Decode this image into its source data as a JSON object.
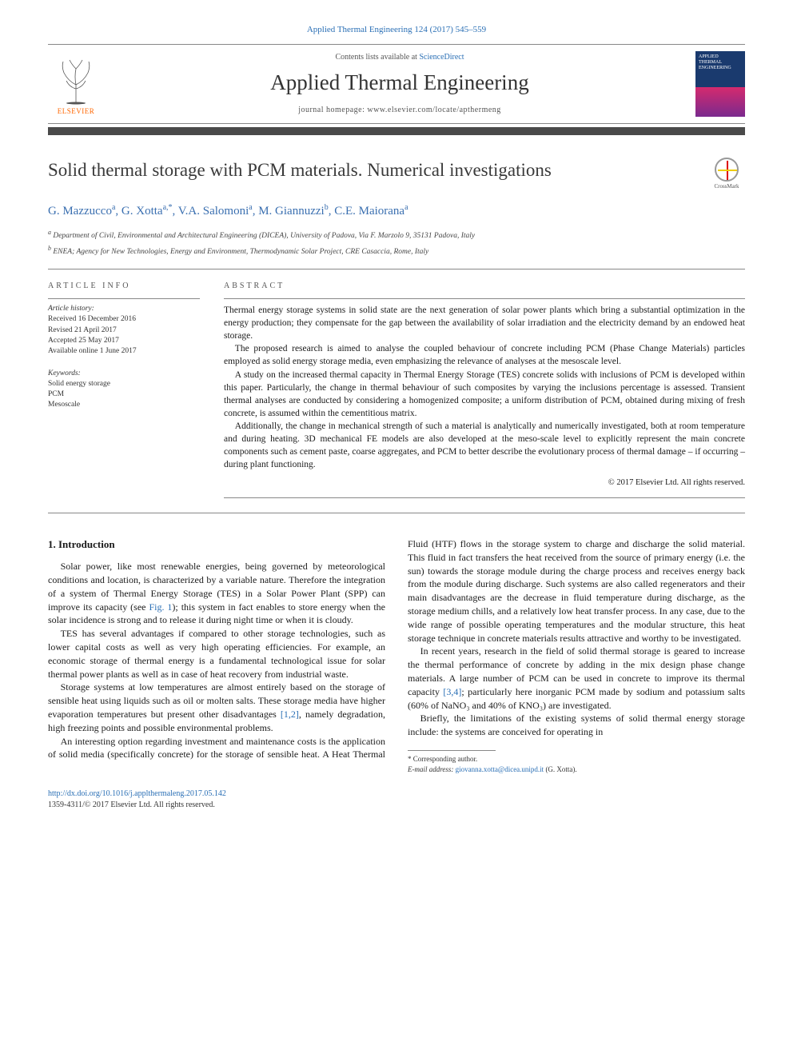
{
  "journal_ref": "Applied Thermal Engineering 124 (2017) 545–559",
  "header": {
    "contents_prefix": "Contents lists available at ",
    "contents_link": "ScienceDirect",
    "journal_name": "Applied Thermal Engineering",
    "homepage_prefix": "journal homepage: ",
    "homepage_url": "www.elsevier.com/locate/apthermeng",
    "publisher": "ELSEVIER",
    "cover_title": "APPLIED THERMAL ENGINEERING"
  },
  "crossmark_label": "CrossMark",
  "article": {
    "title": "Solid thermal storage with PCM materials. Numerical investigations",
    "authors_html": "G. Mazzucco<sup>a</sup>, G. Xotta<sup>a,*</sup>, V.A. Salomoni<sup>a</sup>, M. Giannuzzi<sup>b</sup>, C.E. Maiorana<sup>a</sup>",
    "affiliations": [
      "Department of Civil, Environmental and Architectural Engineering (DICEA), University of Padova, Via F. Marzolo 9, 35131 Padova, Italy",
      "ENEA; Agency for New Technologies, Energy and Environment, Thermodynamic Solar Project, CRE Casaccia, Rome, Italy"
    ],
    "affil_markers": [
      "a",
      "b"
    ]
  },
  "info": {
    "heading": "article info",
    "history_label": "Article history:",
    "history": [
      "Received 16 December 2016",
      "Revised 21 April 2017",
      "Accepted 25 May 2017",
      "Available online 1 June 2017"
    ],
    "keywords_label": "Keywords:",
    "keywords": [
      "Solid energy storage",
      "PCM",
      "Mesoscale"
    ]
  },
  "abstract": {
    "heading": "abstract",
    "paragraphs": [
      "Thermal energy storage systems in solid state are the next generation of solar power plants which bring a substantial optimization in the energy production; they compensate for the gap between the availability of solar irradiation and the electricity demand by an endowed heat storage.",
      "The proposed research is aimed to analyse the coupled behaviour of concrete including PCM (Phase Change Materials) particles employed as solid energy storage media, even emphasizing the relevance of analyses at the mesoscale level.",
      "A study on the increased thermal capacity in Thermal Energy Storage (TES) concrete solids with inclusions of PCM is developed within this paper. Particularly, the change in thermal behaviour of such composites by varying the inclusions percentage is assessed. Transient thermal analyses are conducted by considering a homogenized composite; a uniform distribution of PCM, obtained during mixing of fresh concrete, is assumed within the cementitious matrix.",
      "Additionally, the change in mechanical strength of such a material is analytically and numerically investigated, both at room temperature and during heating. 3D mechanical FE models are also developed at the meso-scale level to explicitly represent the main concrete components such as cement paste, coarse aggregates, and PCM to better describe the evolutionary process of thermal damage – if occurring – during plant functioning."
    ],
    "copyright": "© 2017 Elsevier Ltd. All rights reserved."
  },
  "body": {
    "section_number": "1.",
    "section_title": "Introduction",
    "paragraphs": [
      "Solar power, like most renewable energies, being governed by meteorological conditions and location, is characterized by a variable nature. Therefore the integration of a system of Thermal Energy Storage (TES) in a Solar Power Plant (SPP) can improve its capacity (see <span class='ref-link'>Fig. 1</span>); this system in fact enables to store energy when the solar incidence is strong and to release it during night time or when it is cloudy.",
      "TES has several advantages if compared to other storage technologies, such as lower capital costs as well as very high operating efficiencies. For example, an economic storage of thermal energy is a fundamental technological issue for solar thermal power plants as well as in case of heat recovery from industrial waste.",
      "Storage systems at low temperatures are almost entirely based on the storage of sensible heat using liquids such as oil or molten salts. These storage media have higher evaporation temperatures but present other disadvantages <span class='ref-link'>[1,2]</span>, namely degradation, high freezing points and possible environmental problems.",
      "An interesting option regarding investment and maintenance costs is the application of solid media (specifically concrete) for the storage of sensible heat. A Heat Thermal Fluid (HTF) flows in the storage system to charge and discharge the solid material. This fluid in fact transfers the heat received from the source of primary energy (i.e. the sun) towards the storage module during the charge process and receives energy back from the module during discharge. Such systems are also called regenerators and their main disadvantages are the decrease in fluid temperature during discharge, as the storage medium chills, and a relatively low heat transfer process. In any case, due to the wide range of possible operating temperatures and the modular structure, this heat storage technique in concrete materials results attractive and worthy to be investigated.",
      "In recent years, research in the field of solid thermal storage is geared to increase the thermal performance of concrete by adding in the mix design phase change materials. A large number of PCM can be used in concrete to improve its thermal capacity <span class='ref-link'>[3,4]</span>; particularly here inorganic PCM made by sodium and potassium salts (60% of NaNO₃ and 40% of KNO₃) are investigated.",
      "Briefly, the limitations of the existing systems of solid thermal energy storage include: the systems are conceived for operating in"
    ]
  },
  "footnote": {
    "corr_marker": "* Corresponding author.",
    "email_label": "E-mail address:",
    "email": "giovanna.xotta@dicea.unipd.it",
    "email_who": "(G. Xotta)."
  },
  "footer": {
    "doi": "http://dx.doi.org/10.1016/j.applthermaleng.2017.05.142",
    "issn_line": "1359-4311/© 2017 Elsevier Ltd. All rights reserved."
  },
  "colors": {
    "link": "#2a6fb5",
    "rule_dark": "#4a4a4a",
    "elsevier_orange": "#ff6600"
  }
}
